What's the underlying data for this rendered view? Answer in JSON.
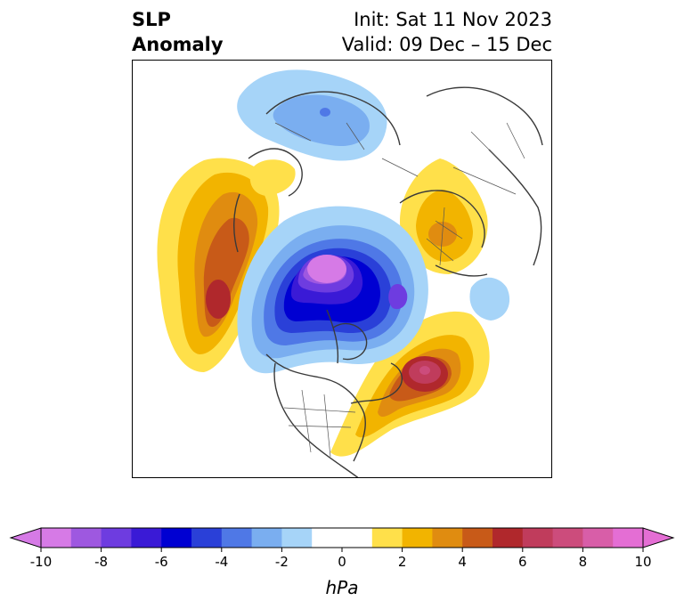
{
  "title": {
    "variable_line1": "SLP",
    "variable_line2": "Anomaly",
    "init": "Init: Sat 11 Nov 2023",
    "valid": "Valid: 09 Dec – 15 Dec"
  },
  "map": {
    "projection": "north-polar-stereographic",
    "features": [
      {
        "name": "negative-anomaly-arctic",
        "sign": "negative",
        "peak_hpa": -10,
        "region": "Arctic Ocean / Siberia side"
      },
      {
        "name": "negative-anomaly-siberia-north",
        "sign": "negative",
        "peak_hpa": -4,
        "region": "Northern Siberia"
      },
      {
        "name": "positive-anomaly-north-pacific",
        "sign": "positive",
        "peak_hpa": 6,
        "region": "North Pacific"
      },
      {
        "name": "positive-anomaly-europe",
        "sign": "positive",
        "peak_hpa": 2,
        "region": "Europe"
      },
      {
        "name": "positive-anomaly-north-atlantic",
        "sign": "positive",
        "peak_hpa": 8,
        "region": "North Atlantic"
      },
      {
        "name": "positive-anomaly-alaska",
        "sign": "positive",
        "peak_hpa": 2,
        "region": "Alaska"
      }
    ]
  },
  "colorbar": {
    "unit": "hPa",
    "ticks": [
      "-10",
      "-8",
      "-6",
      "-4",
      "-2",
      "0",
      "2",
      "4",
      "6",
      "8",
      "10"
    ],
    "tick_values": [
      -10,
      -8,
      -6,
      -4,
      -2,
      0,
      2,
      4,
      6,
      8,
      10
    ],
    "boundaries": [
      -10,
      -9,
      -8,
      -7,
      -6,
      -5,
      -4,
      -3,
      -2,
      -1,
      1,
      2,
      3,
      4,
      5,
      6,
      7,
      8,
      9,
      10
    ],
    "colors": [
      "#d67ae6",
      "#9e58e0",
      "#6e3ce0",
      "#3a1ad6",
      "#0000d2",
      "#2a40d8",
      "#4f78e6",
      "#7aaef0",
      "#a6d4f8",
      "#ffffff",
      "#ffe04a",
      "#f2b400",
      "#e08c10",
      "#c85a18",
      "#b0282c",
      "#c03c5c",
      "#cc4c7c",
      "#d85ea8",
      "#e46ed4"
    ],
    "extend_low_color": "#d67ae6",
    "extend_high_color": "#e46ed4"
  }
}
